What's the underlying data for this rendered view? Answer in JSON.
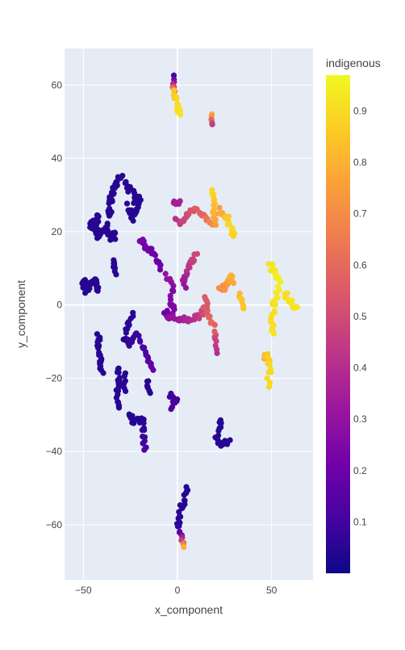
{
  "chart_data": {
    "type": "scatter",
    "xlabel": "x_component",
    "ylabel": "y_component",
    "xlim": [
      -60,
      72
    ],
    "ylim": [
      -75,
      70
    ],
    "x_ticks": [
      -50,
      0,
      50
    ],
    "x_tick_labels": [
      "−50",
      "0",
      "50"
    ],
    "y_ticks": [
      60,
      40,
      20,
      0,
      -20,
      -40,
      -60
    ],
    "y_tick_labels": [
      "60",
      "40",
      "20",
      "0",
      "−20",
      "−40",
      "−60"
    ],
    "grid": true,
    "plot_background": "#E5ECF6",
    "colorbar": {
      "title": "indigenous",
      "range": [
        0.0,
        0.97
      ],
      "ticks": [
        0.1,
        0.2,
        0.3,
        0.4,
        0.5,
        0.6,
        0.7,
        0.8,
        0.9
      ],
      "tick_labels": [
        "0.1",
        "0.2",
        "0.3",
        "0.4",
        "0.5",
        "0.6",
        "0.7",
        "0.8",
        "0.9"
      ],
      "colorscale": "Plasma",
      "colors": [
        "#0d0887",
        "#46039f",
        "#7201a8",
        "#9c179e",
        "#bd3786",
        "#d8576b",
        "#ed7953",
        "#fb9f3a",
        "#fdca26",
        "#f0f921"
      ]
    },
    "clusters": [
      {
        "path": [
          [
            -2,
            62
          ],
          [
            -2,
            58
          ],
          [
            0,
            55
          ],
          [
            1,
            52
          ]
        ],
        "value": [
          0.1,
          0.85,
          0.9,
          0.92
        ],
        "n": 22,
        "spread": 0.8
      },
      {
        "path": [
          [
            18,
            52
          ],
          [
            18,
            49
          ]
        ],
        "value": [
          0.8,
          0.45
        ],
        "n": 6,
        "spread": 0.5
      },
      {
        "path": [
          [
            -30,
            36
          ],
          [
            -34,
            32
          ],
          [
            -36,
            28
          ],
          [
            -36,
            24
          ]
        ],
        "value": [
          0.05,
          0.05,
          0.05,
          0.05
        ],
        "n": 26,
        "spread": 1.0
      },
      {
        "path": [
          [
            -42,
            24
          ],
          [
            -46,
            22
          ],
          [
            -44,
            20
          ],
          [
            -40,
            19
          ]
        ],
        "value": [
          0.05,
          0.05,
          0.05,
          0.05
        ],
        "n": 38,
        "spread": 1.3
      },
      {
        "path": [
          [
            -38,
            22
          ],
          [
            -36,
            18
          ],
          [
            -34,
            20
          ],
          [
            -33,
            18
          ]
        ],
        "value": [
          0.05,
          0.05,
          0.05,
          0.05
        ],
        "n": 16,
        "spread": 0.9
      },
      {
        "path": [
          [
            -28,
            33
          ],
          [
            -24,
            31
          ],
          [
            -22,
            28
          ],
          [
            -20,
            30
          ],
          [
            -22,
            25
          ],
          [
            -26,
            27
          ]
        ],
        "value": [
          0.05,
          0.05,
          0.05,
          0.05,
          0.05,
          0.05
        ],
        "n": 32,
        "spread": 0.9
      },
      {
        "path": [
          [
            -25,
            26
          ],
          [
            -24,
            23
          ]
        ],
        "value": [
          0.05,
          0.05
        ],
        "n": 6,
        "spread": 0.6
      },
      {
        "path": [
          [
            -2,
            28
          ],
          [
            1,
            28
          ]
        ],
        "value": [
          0.35,
          0.35
        ],
        "n": 6,
        "spread": 0.5
      },
      {
        "path": [
          [
            -1,
            24
          ],
          [
            2,
            22
          ],
          [
            5,
            25
          ],
          [
            10,
            26
          ],
          [
            15,
            24
          ],
          [
            18,
            22
          ]
        ],
        "value": [
          0.4,
          0.45,
          0.5,
          0.55,
          0.6,
          0.7
        ],
        "n": 30,
        "spread": 0.6
      },
      {
        "path": [
          [
            18,
            31
          ],
          [
            20,
            28
          ],
          [
            19,
            25
          ],
          [
            21,
            22
          ]
        ],
        "value": [
          0.9,
          0.85,
          0.8,
          0.75
        ],
        "n": 16,
        "spread": 0.7
      },
      {
        "path": [
          [
            22,
            26
          ],
          [
            26,
            24
          ],
          [
            28,
            21
          ],
          [
            30,
            19
          ]
        ],
        "value": [
          0.75,
          0.85,
          0.9,
          0.88
        ],
        "n": 18,
        "spread": 0.8
      },
      {
        "path": [
          [
            -20,
            18
          ],
          [
            -17,
            16
          ],
          [
            -13,
            14
          ],
          [
            -10,
            12
          ],
          [
            -9,
            10
          ]
        ],
        "value": [
          0.25,
          0.22,
          0.2,
          0.2,
          0.2
        ],
        "n": 22,
        "spread": 0.7
      },
      {
        "path": [
          [
            -34,
            12
          ],
          [
            -33,
            9
          ]
        ],
        "value": [
          0.05,
          0.05
        ],
        "n": 8,
        "spread": 0.7
      },
      {
        "path": [
          [
            -50,
            7
          ],
          [
            -49,
            4
          ],
          [
            -46,
            6
          ],
          [
            -44,
            7
          ],
          [
            -42,
            4
          ]
        ],
        "value": [
          0.05,
          0.05,
          0.05,
          0.05,
          0.05
        ],
        "n": 32,
        "spread": 1.0
      },
      {
        "path": [
          [
            10,
            14
          ],
          [
            7,
            11
          ],
          [
            5,
            9
          ],
          [
            3,
            7
          ],
          [
            4,
            5
          ]
        ],
        "value": [
          0.5,
          0.45,
          0.4,
          0.35,
          0.3
        ],
        "n": 20,
        "spread": 0.7
      },
      {
        "path": [
          [
            -6,
            8
          ],
          [
            -3,
            6
          ],
          [
            -2,
            4
          ],
          [
            -4,
            2
          ]
        ],
        "value": [
          0.3,
          0.3,
          0.25,
          0.25
        ],
        "n": 12,
        "spread": 0.7
      },
      {
        "path": [
          [
            -4,
            1
          ],
          [
            -2,
            -1
          ],
          [
            -4,
            -3
          ],
          [
            -7,
            -2
          ]
        ],
        "value": [
          0.25,
          0.25,
          0.22,
          0.2
        ],
        "n": 16,
        "spread": 0.8
      },
      {
        "path": [
          [
            -6,
            -3
          ],
          [
            -2,
            -3
          ],
          [
            3,
            -4
          ],
          [
            8,
            -4
          ],
          [
            12,
            -3
          ],
          [
            15,
            -1
          ],
          [
            18,
            -5
          ]
        ],
        "value": [
          0.3,
          0.3,
          0.35,
          0.4,
          0.45,
          0.55,
          0.6
        ],
        "n": 34,
        "spread": 0.8
      },
      {
        "path": [
          [
            14,
            2
          ],
          [
            16,
            0
          ],
          [
            14,
            -1
          ]
        ],
        "value": [
          0.55,
          0.55,
          0.55
        ],
        "n": 8,
        "spread": 0.6
      },
      {
        "path": [
          [
            20,
            -5
          ],
          [
            20,
            -9
          ],
          [
            21,
            -13
          ]
        ],
        "value": [
          0.6,
          0.5,
          0.4
        ],
        "n": 10,
        "spread": 0.5
      },
      {
        "path": [
          [
            22,
            4
          ],
          [
            25,
            5
          ],
          [
            27,
            6
          ],
          [
            28,
            8
          ],
          [
            29,
            6
          ]
        ],
        "value": [
          0.7,
          0.72,
          0.75,
          0.8,
          0.78
        ],
        "n": 16,
        "spread": 0.8
      },
      {
        "path": [
          [
            33,
            3
          ],
          [
            34,
            1
          ],
          [
            35,
            -1
          ]
        ],
        "value": [
          0.82,
          0.85,
          0.85
        ],
        "n": 8,
        "spread": 0.6
      },
      {
        "path": [
          [
            49,
            11
          ],
          [
            52,
            9
          ],
          [
            54,
            6
          ],
          [
            53,
            3
          ],
          [
            51,
            -1
          ],
          [
            50,
            -4
          ],
          [
            51,
            -8
          ]
        ],
        "value": [
          0.92,
          0.93,
          0.95,
          0.93,
          0.92,
          0.9,
          0.92
        ],
        "n": 36,
        "spread": 1.0
      },
      {
        "path": [
          [
            57,
            3
          ],
          [
            60,
            1
          ],
          [
            62,
            0
          ],
          [
            63,
            -1
          ]
        ],
        "value": [
          0.9,
          0.92,
          0.93,
          0.92
        ],
        "n": 14,
        "spread": 0.9
      },
      {
        "path": [
          [
            46,
            -15
          ],
          [
            48,
            -13
          ],
          [
            49,
            -18
          ],
          [
            48,
            -22
          ]
        ],
        "value": [
          0.8,
          0.85,
          0.9,
          0.9
        ],
        "n": 18,
        "spread": 0.9
      },
      {
        "path": [
          [
            -42,
            -8
          ],
          [
            -42,
            -12
          ],
          [
            -41,
            -16
          ],
          [
            -40,
            -18
          ]
        ],
        "value": [
          0.05,
          0.05,
          0.05,
          0.05
        ],
        "n": 24,
        "spread": 0.8
      },
      {
        "path": [
          [
            -24,
            -3
          ],
          [
            -26,
            -6
          ],
          [
            -28,
            -9
          ],
          [
            -25,
            -11
          ],
          [
            -22,
            -8
          ]
        ],
        "value": [
          0.05,
          0.05,
          0.05,
          0.08,
          0.08
        ],
        "n": 24,
        "spread": 0.9
      },
      {
        "path": [
          [
            -20,
            -9
          ],
          [
            -18,
            -12
          ],
          [
            -15,
            -15
          ],
          [
            -13,
            -18
          ]
        ],
        "value": [
          0.1,
          0.12,
          0.15,
          0.18
        ],
        "n": 16,
        "spread": 0.7
      },
      {
        "path": [
          [
            -32,
            -17
          ],
          [
            -31,
            -21
          ],
          [
            -32,
            -25
          ],
          [
            -31,
            -28
          ]
        ],
        "value": [
          0.05,
          0.05,
          0.05,
          0.05
        ],
        "n": 20,
        "spread": 0.8
      },
      {
        "path": [
          [
            -28,
            -19
          ],
          [
            -28,
            -23
          ]
        ],
        "value": [
          0.05,
          0.05
        ],
        "n": 6,
        "spread": 0.6
      },
      {
        "path": [
          [
            -16,
            -21
          ],
          [
            -15,
            -24
          ]
        ],
        "value": [
          0.05,
          0.05
        ],
        "n": 8,
        "spread": 0.6
      },
      {
        "path": [
          [
            -4,
            -24
          ],
          [
            -2,
            -26
          ],
          [
            0,
            -26
          ],
          [
            -3,
            -28
          ]
        ],
        "value": [
          0.1,
          0.1,
          0.1,
          0.12
        ],
        "n": 14,
        "spread": 0.8
      },
      {
        "path": [
          [
            -26,
            -30
          ],
          [
            -22,
            -32
          ],
          [
            -19,
            -31
          ],
          [
            -18,
            -36
          ],
          [
            -17,
            -40
          ]
        ],
        "value": [
          0.05,
          0.05,
          0.05,
          0.08,
          0.12
        ],
        "n": 24,
        "spread": 0.9
      },
      {
        "path": [
          [
            23,
            -31
          ],
          [
            22,
            -34
          ],
          [
            21,
            -36
          ],
          [
            22,
            -38
          ],
          [
            27,
            -37
          ]
        ],
        "value": [
          0.05,
          0.05,
          0.05,
          0.05,
          0.05
        ],
        "n": 20,
        "spread": 0.9
      },
      {
        "path": [
          [
            5,
            -50
          ],
          [
            4,
            -53
          ],
          [
            2,
            -55
          ],
          [
            1,
            -58
          ],
          [
            0,
            -61
          ],
          [
            2,
            -63
          ],
          [
            3,
            -65
          ],
          [
            3,
            -66
          ]
        ],
        "value": [
          0.05,
          0.05,
          0.05,
          0.05,
          0.05,
          0.25,
          0.6,
          0.8
        ],
        "n": 30,
        "spread": 0.8
      }
    ]
  }
}
